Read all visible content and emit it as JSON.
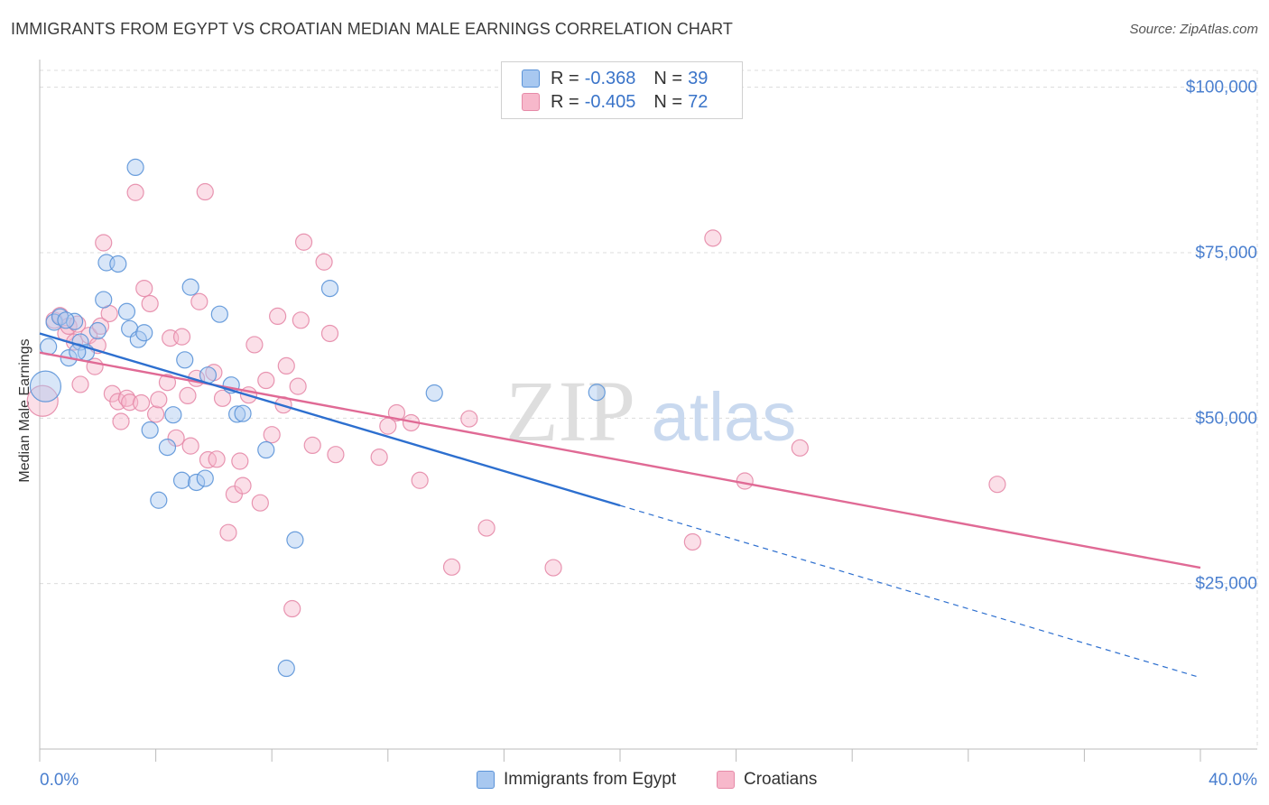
{
  "header": {
    "title": "IMMIGRANTS FROM EGYPT VS CROATIAN MEDIAN MALE EARNINGS CORRELATION CHART",
    "source": "Source: ZipAtlas.com"
  },
  "watermark": {
    "zip": "ZIP",
    "atlas": "atlas"
  },
  "legend": {
    "rows": [
      {
        "r_label": "R =",
        "r_value": "-0.368",
        "n_label": "N =",
        "n_value": "39"
      },
      {
        "r_label": "R =",
        "r_value": "-0.405",
        "n_label": "N =",
        "n_value": "72"
      }
    ]
  },
  "bottom_legend": {
    "series1": "Immigrants from Egypt",
    "series2": "Croatians"
  },
  "colors": {
    "blue_fill": "#a8c8f0",
    "blue_stroke": "#5b93d8",
    "blue_line": "#2d6fcf",
    "pink_fill": "#f7b8cb",
    "pink_stroke": "#e68aa8",
    "pink_line": "#e06a95",
    "axis_text": "#4a7fcf",
    "grid": "#dcdcdc"
  },
  "chart_data": {
    "type": "scatter",
    "title": "IMMIGRANTS FROM EGYPT VS CROATIAN MEDIAN MALE EARNINGS CORRELATION CHART",
    "xlabel": "",
    "ylabel": "Median Male Earnings",
    "xlim": [
      0,
      40
    ],
    "ylim": [
      0,
      105000
    ],
    "x_tick_labels": [
      "0.0%",
      "40.0%"
    ],
    "y_ticks": [
      25000,
      50000,
      75000,
      100000
    ],
    "y_tick_labels": [
      "$25,000",
      "$50,000",
      "$75,000",
      "$100,000"
    ],
    "grid": true,
    "legend_position": "top-center",
    "series": [
      {
        "name": "Immigrants from Egypt",
        "color": "#a8c8f0",
        "r": -0.368,
        "n": 39,
        "trend": {
          "x0": 0,
          "y0": 62800,
          "x1": 20,
          "y1": 36800,
          "dashed_to_x": 40,
          "dashed_to_y": 10800
        },
        "points": [
          [
            0.2,
            54800
          ],
          [
            0.3,
            60800
          ],
          [
            0.5,
            64500
          ],
          [
            0.7,
            65300
          ],
          [
            1.0,
            59100
          ],
          [
            1.2,
            64600
          ],
          [
            1.4,
            61500
          ],
          [
            1.6,
            59900
          ],
          [
            2.0,
            63200
          ],
          [
            2.2,
            67900
          ],
          [
            2.3,
            73500
          ],
          [
            2.7,
            73300
          ],
          [
            3.0,
            66100
          ],
          [
            3.1,
            63500
          ],
          [
            3.3,
            87900
          ],
          [
            3.4,
            61900
          ],
          [
            3.6,
            62900
          ],
          [
            3.8,
            48200
          ],
          [
            4.4,
            45600
          ],
          [
            4.6,
            50500
          ],
          [
            4.9,
            40600
          ],
          [
            5.0,
            58800
          ],
          [
            5.2,
            69800
          ],
          [
            5.4,
            40300
          ],
          [
            5.7,
            40900
          ],
          [
            5.8,
            56500
          ],
          [
            6.2,
            65700
          ],
          [
            6.6,
            55000
          ],
          [
            6.8,
            50600
          ],
          [
            7.0,
            50700
          ],
          [
            7.8,
            45200
          ],
          [
            8.5,
            12200
          ],
          [
            8.8,
            31600
          ],
          [
            10.0,
            69600
          ],
          [
            13.6,
            53800
          ],
          [
            19.2,
            53900
          ],
          [
            4.1,
            37600
          ],
          [
            1.3,
            60000
          ],
          [
            0.9,
            64800
          ]
        ]
      },
      {
        "name": "Croatians",
        "color": "#f7b8cb",
        "r": -0.405,
        "n": 72,
        "trend": {
          "x0": 0,
          "y0": 59900,
          "x1": 40,
          "y1": 27400
        },
        "points": [
          [
            0.1,
            52600
          ],
          [
            0.5,
            64800
          ],
          [
            0.7,
            65500
          ],
          [
            0.9,
            62800
          ],
          [
            1.0,
            63900
          ],
          [
            1.2,
            61500
          ],
          [
            1.4,
            55100
          ],
          [
            1.7,
            62500
          ],
          [
            1.9,
            57800
          ],
          [
            2.1,
            63900
          ],
          [
            2.2,
            76500
          ],
          [
            2.4,
            65800
          ],
          [
            2.5,
            53700
          ],
          [
            2.7,
            52500
          ],
          [
            2.8,
            49500
          ],
          [
            3.0,
            53000
          ],
          [
            3.1,
            52400
          ],
          [
            3.3,
            84100
          ],
          [
            3.5,
            52300
          ],
          [
            3.6,
            69600
          ],
          [
            3.8,
            67300
          ],
          [
            4.0,
            50600
          ],
          [
            4.1,
            52800
          ],
          [
            4.4,
            55400
          ],
          [
            4.5,
            62100
          ],
          [
            4.7,
            47000
          ],
          [
            4.9,
            62300
          ],
          [
            5.1,
            53400
          ],
          [
            5.2,
            45800
          ],
          [
            5.4,
            56000
          ],
          [
            5.5,
            67600
          ],
          [
            5.7,
            84200
          ],
          [
            5.8,
            43700
          ],
          [
            6.0,
            56900
          ],
          [
            6.1,
            43800
          ],
          [
            6.3,
            53000
          ],
          [
            6.5,
            32700
          ],
          [
            6.7,
            38500
          ],
          [
            6.9,
            43500
          ],
          [
            7.0,
            39800
          ],
          [
            7.2,
            53500
          ],
          [
            7.4,
            61100
          ],
          [
            7.6,
            37200
          ],
          [
            7.8,
            55700
          ],
          [
            8.0,
            47500
          ],
          [
            8.2,
            65400
          ],
          [
            8.4,
            52000
          ],
          [
            8.5,
            57900
          ],
          [
            8.7,
            21200
          ],
          [
            8.9,
            54800
          ],
          [
            9.0,
            64800
          ],
          [
            9.1,
            76600
          ],
          [
            9.4,
            45900
          ],
          [
            9.8,
            73600
          ],
          [
            10.0,
            62800
          ],
          [
            10.2,
            44500
          ],
          [
            11.7,
            44100
          ],
          [
            12.0,
            48800
          ],
          [
            12.3,
            50800
          ],
          [
            12.8,
            49300
          ],
          [
            13.1,
            40600
          ],
          [
            14.2,
            27500
          ],
          [
            14.8,
            49900
          ],
          [
            15.4,
            33400
          ],
          [
            17.7,
            27400
          ],
          [
            22.5,
            31300
          ],
          [
            23.2,
            77200
          ],
          [
            24.3,
            40500
          ],
          [
            26.2,
            45500
          ],
          [
            33.0,
            40000
          ],
          [
            1.3,
            64200
          ],
          [
            2.0,
            61000
          ]
        ]
      }
    ]
  }
}
